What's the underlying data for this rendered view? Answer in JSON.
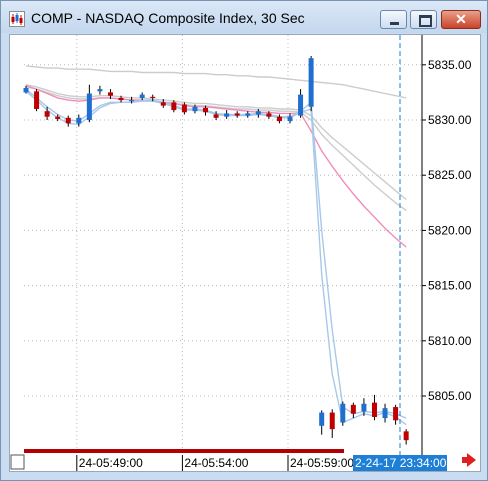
{
  "window": {
    "title": "COMP - NASDAQ Composite Index, 30 Sec",
    "close_label": "✕",
    "app_icon": "chart-app-icon"
  },
  "chart_data": {
    "type": "candlestick",
    "ylim": [
      5800.2,
      5837.7
    ],
    "yticks": [
      {
        "v": 5835,
        "label": "5835.00"
      },
      {
        "v": 5830,
        "label": "5830.00"
      },
      {
        "v": 5825,
        "label": "5825.00"
      },
      {
        "v": 5820,
        "label": "5820.00"
      },
      {
        "v": 5815,
        "label": "5815.00"
      },
      {
        "v": 5810,
        "label": "5810.00"
      },
      {
        "v": 5805,
        "label": "5805.00"
      }
    ],
    "xticks": [
      "24-05:49:00",
      "24-05:54:00",
      "24-05:59:00"
    ],
    "cursor_time": "2-24-17 23:34:00",
    "colors": {
      "up": "#1f6fd0",
      "down": "#c00000",
      "ma_pink": "#f08cbc",
      "ma_blue": "#a8c8ea",
      "ma_gray": "#cccccc",
      "cursor": "#1e7fd6",
      "scroll": "#b30000"
    },
    "candles": [
      {
        "o": 5832.5,
        "c": 5832.9,
        "h": 5833.1,
        "l": 5832.4
      },
      {
        "o": 5832.6,
        "c": 5831.0,
        "h": 5832.8,
        "l": 5830.8
      },
      {
        "o": 5830.8,
        "c": 5830.3,
        "h": 5831.2,
        "l": 5830.0
      },
      {
        "o": 5830.3,
        "c": 5830.1,
        "h": 5830.5,
        "l": 5829.9
      },
      {
        "o": 5830.2,
        "c": 5829.7,
        "h": 5830.4,
        "l": 5829.4
      },
      {
        "o": 5829.7,
        "c": 5830.2,
        "h": 5830.5,
        "l": 5829.4
      },
      {
        "o": 5830.0,
        "c": 5832.4,
        "h": 5833.2,
        "l": 5829.8
      },
      {
        "o": 5832.6,
        "c": 5832.8,
        "h": 5833.1,
        "l": 5832.3
      },
      {
        "o": 5832.5,
        "c": 5832.2,
        "h": 5832.8,
        "l": 5831.9
      },
      {
        "o": 5832.0,
        "c": 5831.8,
        "h": 5832.2,
        "l": 5831.6
      },
      {
        "o": 5831.7,
        "c": 5831.8,
        "h": 5832.1,
        "l": 5831.5
      },
      {
        "o": 5832.0,
        "c": 5832.3,
        "h": 5832.5,
        "l": 5831.8
      },
      {
        "o": 5832.1,
        "c": 5832.0,
        "h": 5832.3,
        "l": 5831.7
      },
      {
        "o": 5831.6,
        "c": 5831.3,
        "h": 5831.9,
        "l": 5831.1
      },
      {
        "o": 5831.6,
        "c": 5830.9,
        "h": 5831.8,
        "l": 5830.7
      },
      {
        "o": 5831.4,
        "c": 5830.7,
        "h": 5831.6,
        "l": 5830.5
      },
      {
        "o": 5830.8,
        "c": 5831.2,
        "h": 5831.4,
        "l": 5830.6
      },
      {
        "o": 5831.1,
        "c": 5830.7,
        "h": 5831.3,
        "l": 5830.4
      },
      {
        "o": 5830.5,
        "c": 5830.2,
        "h": 5830.8,
        "l": 5830.0
      },
      {
        "o": 5830.3,
        "c": 5830.6,
        "h": 5830.9,
        "l": 5830.1
      },
      {
        "o": 5830.6,
        "c": 5830.4,
        "h": 5830.8,
        "l": 5830.2
      },
      {
        "o": 5830.4,
        "c": 5830.6,
        "h": 5830.8,
        "l": 5830.2
      },
      {
        "o": 5830.5,
        "c": 5830.8,
        "h": 5831.0,
        "l": 5830.2
      },
      {
        "o": 5830.6,
        "c": 5830.3,
        "h": 5830.8,
        "l": 5830.1
      },
      {
        "o": 5830.3,
        "c": 5829.9,
        "h": 5830.5,
        "l": 5829.7
      },
      {
        "o": 5829.9,
        "c": 5830.3,
        "h": 5830.6,
        "l": 5829.7
      },
      {
        "o": 5830.4,
        "c": 5832.3,
        "h": 5832.8,
        "l": 5830.2
      },
      {
        "o": 5831.2,
        "c": 5835.6,
        "h": 5835.8,
        "l": 5830.8
      },
      {
        "o": 5802.3,
        "c": 5803.5,
        "h": 5803.7,
        "l": 5801.5
      },
      {
        "o": 5803.5,
        "c": 5802.0,
        "h": 5803.8,
        "l": 5801.2
      },
      {
        "o": 5802.6,
        "c": 5804.3,
        "h": 5804.5,
        "l": 5802.3
      },
      {
        "o": 5804.2,
        "c": 5803.4,
        "h": 5804.4,
        "l": 5803.0
      },
      {
        "o": 5803.6,
        "c": 5804.3,
        "h": 5804.8,
        "l": 5803.2
      },
      {
        "o": 5804.4,
        "c": 5803.1,
        "h": 5805.1,
        "l": 5802.8
      },
      {
        "o": 5803.0,
        "c": 5803.9,
        "h": 5804.3,
        "l": 5802.6
      },
      {
        "o": 5804.0,
        "c": 5802.8,
        "h": 5804.2,
        "l": 5802.4
      },
      {
        "o": 5801.8,
        "c": 5801.0,
        "h": 5802.0,
        "l": 5800.6
      }
    ],
    "moving_averages": [
      {
        "color": "ma_gray",
        "values": [
          5834.9,
          5834.8,
          5834.7,
          5834.7,
          5834.6,
          5834.6,
          5834.6,
          5834.5,
          5834.4,
          5834.4,
          5834.4,
          5834.3,
          5834.3,
          5834.3,
          5834.3,
          5834.2,
          5834.2,
          5834.2,
          5834.1,
          5834.1,
          5834.0,
          5834.0,
          5833.9,
          5833.9,
          5833.8,
          5833.7,
          5833.6,
          5833.5,
          5833.4,
          5833.3,
          5833.2,
          5833.0,
          5832.8,
          5832.6,
          5832.4,
          5832.2,
          5832.0
        ]
      },
      {
        "color": "ma_gray",
        "values": [
          5833.2,
          5833.0,
          5832.7,
          5832.4,
          5832.2,
          5832.1,
          5832.1,
          5832.2,
          5832.2,
          5832.1,
          5832.0,
          5832.0,
          5831.9,
          5831.8,
          5831.7,
          5831.6,
          5831.5,
          5831.5,
          5831.4,
          5831.3,
          5831.2,
          5831.2,
          5831.1,
          5831.1,
          5831.0,
          5831.0,
          5830.9,
          5830.4,
          5829.3,
          5828.4,
          5827.6,
          5826.8,
          5826.0,
          5825.2,
          5824.4,
          5823.6,
          5822.8
        ]
      },
      {
        "color": "ma_gray",
        "values": [
          5833.0,
          5832.8,
          5832.5,
          5832.2,
          5832.0,
          5831.9,
          5831.9,
          5832.0,
          5832.0,
          5831.9,
          5831.8,
          5831.8,
          5831.7,
          5831.6,
          5831.5,
          5831.4,
          5831.3,
          5831.3,
          5831.2,
          5831.1,
          5831.0,
          5831.0,
          5830.9,
          5830.9,
          5830.8,
          5830.8,
          5830.7,
          5830.0,
          5828.7,
          5827.7,
          5826.8,
          5825.9,
          5825.0,
          5824.1,
          5823.3,
          5822.5,
          5821.8
        ]
      },
      {
        "color": "ma_pink",
        "values": [
          5833.1,
          5832.8,
          5832.4,
          5832.0,
          5831.8,
          5831.7,
          5831.8,
          5832.0,
          5832.0,
          5831.9,
          5831.8,
          5831.8,
          5831.7,
          5831.6,
          5831.5,
          5831.3,
          5831.2,
          5831.2,
          5831.1,
          5831.0,
          5830.9,
          5830.8,
          5830.7,
          5830.7,
          5830.6,
          5830.6,
          5830.6,
          5829.0,
          5827.2,
          5825.8,
          5824.5,
          5823.3,
          5822.2,
          5821.2,
          5820.2,
          5819.3,
          5818.5
        ]
      },
      {
        "color": "ma_blue",
        "values": [
          5832.8,
          5832.0,
          5831.2,
          5830.5,
          5830.0,
          5829.9,
          5830.6,
          5831.3,
          5831.6,
          5831.6,
          5831.6,
          5831.8,
          5831.8,
          5831.6,
          5831.3,
          5831.0,
          5831.0,
          5830.9,
          5830.6,
          5830.5,
          5830.5,
          5830.5,
          5830.6,
          5830.5,
          5830.3,
          5830.3,
          5830.8,
          5831.6,
          5820.0,
          5811.0,
          5804.0,
          5803.4,
          5803.6,
          5803.5,
          5803.6,
          5803.4,
          5803.0
        ]
      },
      {
        "color": "ma_blue",
        "values": [
          5832.6,
          5831.8,
          5830.9,
          5830.2,
          5829.7,
          5829.6,
          5830.3,
          5831.1,
          5831.5,
          5831.6,
          5831.6,
          5831.7,
          5831.7,
          5831.5,
          5831.2,
          5830.9,
          5830.9,
          5830.8,
          5830.5,
          5830.4,
          5830.4,
          5830.4,
          5830.5,
          5830.4,
          5830.2,
          5830.2,
          5830.7,
          5831.0,
          5816.0,
          5807.0,
          5802.6,
          5803.0,
          5803.4,
          5803.2,
          5803.5,
          5803.1,
          5802.4
        ]
      }
    ]
  }
}
